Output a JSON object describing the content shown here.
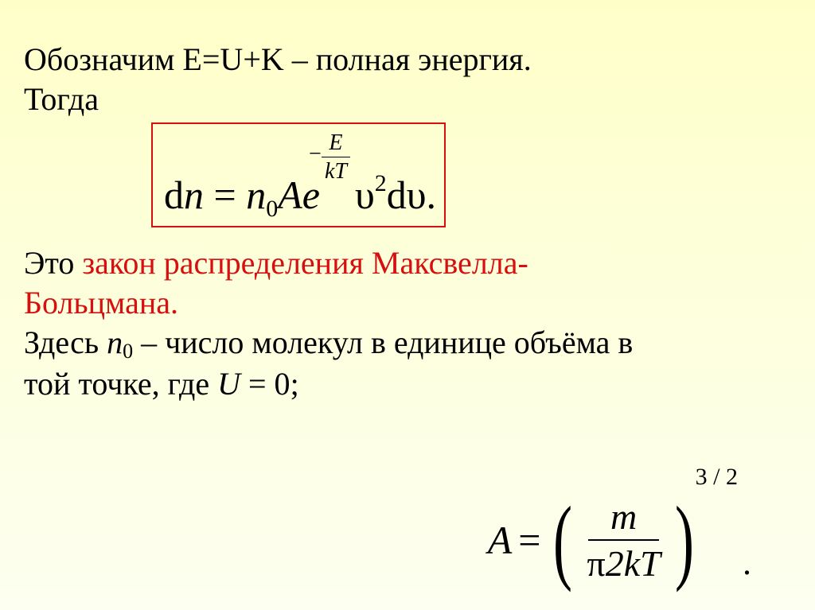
{
  "line1_a": "Обозначим E=U+K – полная энергия.",
  "line2": "Тогда",
  "formula1": {
    "lhs_d": "d",
    "lhs_n": "n",
    "eq": " = ",
    "n": "n",
    "sub0": "0",
    "A": "A",
    "e": "e",
    "exp_minus": "−",
    "exp_num": "E",
    "exp_den": "kT",
    "ups": "υ",
    "sq": "2",
    "d2": "d",
    "ups2": "υ.",
    "box_color": "#d61010"
  },
  "line3_a": "Это ",
  "line3_b": "закон распределения Максвелла-",
  "line4": "Больцмана",
  "line4_dot": ".",
  "line5_a": "Здесь ",
  "line5_n": "n",
  "line5_sub": "0",
  "line5_b": " – число молекул в единице объёма в",
  "line6_a": "той точке, где  ",
  "u_eq_U": "U",
  "u_eq_rest": " = 0",
  "u_eq_semi": ";",
  "formulaA": {
    "A": "A",
    "eq": "=",
    "lp": "(",
    "num": "m",
    "den_pi": "π",
    "den_rest": "2kT",
    "rp": ")",
    "exp": "3 / 2",
    "dot": "."
  },
  "colors": {
    "red": "#d61010",
    "black": "#000000",
    "bg_top": "#feffc8",
    "bg_bottom": "#fdfff0"
  }
}
